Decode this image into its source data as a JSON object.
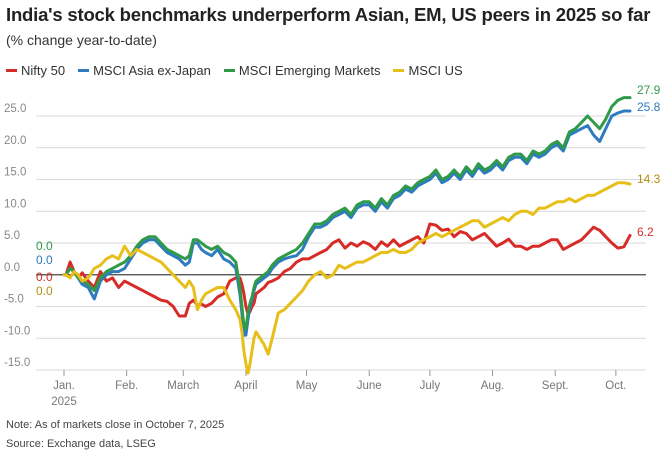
{
  "title": "India's stock benchmarks underperform Asian, EM, US peers in 2025 so far",
  "subtitle": "(% change year-to-date)",
  "notes": {
    "note": "Note: As of markets close in October 7, 2025",
    "source": "Source: Exchange data, LSEG"
  },
  "chart_data": {
    "type": "line",
    "ylim": [
      -15,
      28
    ],
    "yticks": [
      -15,
      -10,
      -5,
      0,
      5,
      10,
      15,
      20,
      25
    ],
    "ytick_labels": [
      "-15.0",
      "-10.0",
      "-5.0",
      "0.0",
      "5.0",
      "10.0",
      "15.0",
      "20.0",
      "25.0"
    ],
    "x_day_range": [
      0,
      280
    ],
    "xticks": [
      {
        "day": 0,
        "label": "Jan.",
        "label2": "2025"
      },
      {
        "day": 31,
        "label": "Feb."
      },
      {
        "day": 59,
        "label": "March"
      },
      {
        "day": 90,
        "label": "April"
      },
      {
        "day": 120,
        "label": "May"
      },
      {
        "day": 151,
        "label": "June"
      },
      {
        "day": 181,
        "label": "July"
      },
      {
        "day": 212,
        "label": "Aug."
      },
      {
        "day": 243,
        "label": "Sept."
      },
      {
        "day": 273,
        "label": "Oct."
      }
    ],
    "grid": "horizontal",
    "legend_position": "top-left",
    "start_labels": [
      "0.0",
      "0.0",
      "0.0",
      "0.0"
    ],
    "series": [
      {
        "name": "Nifty 50",
        "color": "#d62b27",
        "end_label": "6.2",
        "x": [
          1,
          3,
          5,
          7,
          9,
          12,
          15,
          18,
          21,
          24,
          27,
          30,
          33,
          36,
          39,
          42,
          45,
          48,
          51,
          54,
          57,
          60,
          62,
          64,
          66,
          68,
          70,
          73,
          76,
          79,
          82,
          85,
          87,
          88,
          89,
          90,
          91,
          92,
          93,
          94,
          95,
          97,
          99,
          101,
          103,
          106,
          109,
          112,
          115,
          118,
          121,
          124,
          127,
          130,
          133,
          136,
          139,
          142,
          145,
          148,
          151,
          154,
          157,
          160,
          163,
          166,
          169,
          172,
          175,
          178,
          181,
          184,
          187,
          190,
          193,
          196,
          199,
          202,
          205,
          208,
          211,
          214,
          217,
          220,
          223,
          226,
          229,
          232,
          235,
          238,
          241,
          244,
          247,
          250,
          253,
          256,
          259,
          262,
          265,
          268,
          271,
          274,
          277,
          280
        ],
        "y": [
          0,
          2,
          0.5,
          -0.5,
          0.3,
          -1,
          -2,
          0.5,
          -1,
          -0.5,
          -2,
          -1,
          -1.5,
          -2,
          -2.5,
          -3,
          -3.5,
          -4,
          -4.2,
          -5,
          -6.5,
          -6.5,
          -4.5,
          -4,
          -4.8,
          -4.6,
          -5.0,
          -4.5,
          -3.5,
          -3,
          -1,
          -0.5,
          -0.5,
          -1.5,
          -3,
          -5,
          -6.2,
          -5.8,
          -5,
          -4.5,
          -3,
          -2.5,
          -2,
          -1.2,
          -1,
          -0.5,
          0.5,
          1,
          2,
          2.5,
          2.5,
          3,
          3.5,
          4,
          5,
          5.5,
          4.2,
          5,
          4.5,
          5.2,
          4.8,
          4,
          5.2,
          4.5,
          5.5,
          4.5,
          5,
          5.5,
          6,
          5,
          8,
          7.8,
          7,
          7.2,
          6,
          6.8,
          6.5,
          5.5,
          6,
          6.5,
          5.5,
          4.5,
          5,
          5.6,
          4.5,
          4.5,
          4,
          4.5,
          4.5,
          5,
          5.5,
          5.5,
          4,
          4.5,
          5,
          5.5,
          6.5,
          7.5,
          7,
          6,
          5,
          4.2,
          4.4,
          6.2
        ]
      },
      {
        "name": "MSCI Asia ex-Japan",
        "color": "#2e7bc0",
        "end_label": "25.8",
        "x": [
          1,
          3,
          5,
          7,
          9,
          12,
          15,
          18,
          21,
          24,
          27,
          30,
          33,
          36,
          39,
          42,
          45,
          48,
          51,
          54,
          57,
          60,
          62,
          64,
          66,
          68,
          70,
          73,
          76,
          79,
          82,
          85,
          87,
          88,
          89,
          90,
          91,
          92,
          93,
          94,
          95,
          97,
          99,
          101,
          103,
          106,
          109,
          112,
          115,
          118,
          121,
          124,
          127,
          130,
          133,
          136,
          139,
          142,
          145,
          148,
          151,
          154,
          157,
          160,
          163,
          166,
          169,
          172,
          175,
          178,
          181,
          184,
          187,
          190,
          193,
          196,
          199,
          202,
          205,
          208,
          211,
          214,
          217,
          220,
          223,
          226,
          229,
          232,
          235,
          238,
          241,
          244,
          247,
          250,
          253,
          256,
          259,
          262,
          265,
          268,
          271,
          274,
          277,
          280
        ],
        "y": [
          0,
          1,
          0.5,
          -0.5,
          -1.5,
          -2,
          -3.8,
          -1,
          0,
          0.5,
          0.5,
          1,
          2.5,
          4,
          5,
          5.5,
          5.5,
          4.5,
          3.5,
          3,
          2.5,
          1.5,
          2,
          5,
          5,
          4,
          3.5,
          3,
          4,
          2.5,
          2,
          1,
          -3,
          -6,
          -9.5,
          -9.5,
          -7,
          -5,
          -4,
          -2.5,
          -1.5,
          -1,
          -0.5,
          0,
          1,
          2,
          2.5,
          2.8,
          3,
          4,
          6,
          7.5,
          7.5,
          8,
          9,
          9.5,
          10,
          9,
          10.5,
          11,
          11,
          10,
          11.5,
          10.5,
          12,
          12.5,
          13.5,
          13,
          14,
          14.5,
          15,
          16,
          14.5,
          15,
          16,
          15,
          16.5,
          15.5,
          17,
          16,
          16.5,
          17.5,
          16.5,
          18,
          18.5,
          18.5,
          17.5,
          19,
          18.5,
          19,
          20,
          20.5,
          19.5,
          22,
          22.5,
          23,
          23.5,
          22,
          21,
          23,
          25,
          25.5,
          25.8,
          25.8
        ]
      },
      {
        "name": "MSCI Emerging Markets",
        "color": "#2f9a48",
        "end_label": "27.9",
        "x": [
          1,
          3,
          5,
          7,
          9,
          12,
          15,
          18,
          21,
          24,
          27,
          30,
          33,
          36,
          39,
          42,
          45,
          48,
          51,
          54,
          57,
          60,
          62,
          64,
          66,
          68,
          70,
          73,
          76,
          79,
          82,
          85,
          87,
          88,
          89,
          90,
          91,
          92,
          93,
          94,
          95,
          97,
          99,
          101,
          103,
          106,
          109,
          112,
          115,
          118,
          121,
          124,
          127,
          130,
          133,
          136,
          139,
          142,
          145,
          148,
          151,
          154,
          157,
          160,
          163,
          166,
          169,
          172,
          175,
          178,
          181,
          184,
          187,
          190,
          193,
          196,
          199,
          202,
          205,
          208,
          211,
          214,
          217,
          220,
          223,
          226,
          229,
          232,
          235,
          238,
          241,
          244,
          247,
          250,
          253,
          256,
          259,
          262,
          265,
          268,
          271,
          274,
          277,
          280
        ],
        "y": [
          0,
          1,
          0.5,
          -0.5,
          -1,
          -1.5,
          -2.5,
          -0.5,
          0.5,
          1,
          1.5,
          2,
          3,
          4.5,
          5.5,
          6,
          6,
          5,
          4,
          3.5,
          3,
          2.5,
          3,
          5.5,
          5.5,
          5,
          4.5,
          4,
          4.5,
          3.5,
          3,
          2,
          -2,
          -5,
          -8,
          -8.5,
          -6,
          -4.5,
          -3.5,
          -2,
          -1,
          -0.5,
          0,
          0.5,
          1.5,
          2.5,
          3,
          3.5,
          4,
          5,
          6.5,
          8,
          8,
          8.5,
          9.5,
          10,
          10.5,
          9.5,
          11,
          11.5,
          11.5,
          10.5,
          12,
          11,
          12.5,
          13,
          14,
          13.5,
          14.5,
          15,
          15.5,
          16.5,
          15,
          15.5,
          16.5,
          15.5,
          17,
          16,
          17.5,
          16.5,
          17,
          18,
          17,
          18.5,
          19,
          19,
          18,
          19.5,
          19,
          19.5,
          20.5,
          21,
          20,
          22.5,
          23,
          24,
          25,
          24,
          23,
          24.5,
          26.5,
          27.5,
          27.9,
          27.9
        ]
      },
      {
        "name": "MSCI US",
        "color": "#e7bf18",
        "end_label": "14.3",
        "x": [
          1,
          3,
          5,
          7,
          9,
          12,
          15,
          18,
          21,
          24,
          27,
          30,
          33,
          36,
          39,
          42,
          45,
          48,
          51,
          54,
          57,
          60,
          62,
          64,
          66,
          68,
          70,
          73,
          76,
          79,
          82,
          85,
          87,
          88,
          89,
          90,
          91,
          92,
          93,
          94,
          95,
          97,
          99,
          101,
          103,
          106,
          109,
          112,
          115,
          118,
          121,
          124,
          127,
          130,
          133,
          136,
          139,
          142,
          145,
          148,
          151,
          154,
          157,
          160,
          163,
          166,
          169,
          172,
          175,
          178,
          181,
          184,
          187,
          190,
          193,
          196,
          199,
          202,
          205,
          208,
          211,
          214,
          217,
          220,
          223,
          226,
          229,
          232,
          235,
          238,
          241,
          244,
          247,
          250,
          253,
          256,
          259,
          262,
          265,
          268,
          271,
          274,
          277,
          280
        ],
        "y": [
          0,
          -0.5,
          0.5,
          0,
          -1,
          -0.5,
          1,
          1.5,
          2.5,
          3,
          2.5,
          4.5,
          3,
          4,
          3.5,
          3,
          2.5,
          2,
          1,
          0,
          -1,
          -2,
          -1,
          -2,
          -5.5,
          -4,
          -3,
          -2.5,
          -2,
          -2,
          -4,
          -5.5,
          -7,
          -9,
          -12,
          -14,
          -15.5,
          -14,
          -12,
          -10,
          -9,
          -10,
          -11,
          -12.5,
          -10,
          -6,
          -5.5,
          -4.5,
          -3.5,
          -2.5,
          -1,
          0,
          0.5,
          -0.5,
          0,
          1.5,
          1,
          1.5,
          2,
          2,
          2.5,
          3,
          3.5,
          3.5,
          4,
          3.5,
          3.5,
          4,
          5,
          5.5,
          6,
          6.5,
          6,
          6.5,
          7,
          7.5,
          8,
          8.5,
          8.5,
          7.5,
          8,
          8.5,
          9,
          8.5,
          9.5,
          10,
          10,
          9.5,
          10.5,
          10.5,
          11,
          11.5,
          11.5,
          12,
          11.5,
          12,
          12.5,
          12.5,
          13,
          13.5,
          14,
          14.5,
          14.5,
          14.3
        ]
      }
    ]
  }
}
